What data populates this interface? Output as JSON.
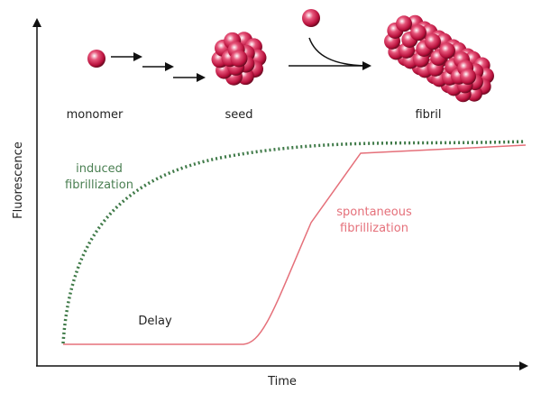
{
  "stages": {
    "monomer": "monomer",
    "seed": "seed",
    "fibril": "fibril"
  },
  "curves": {
    "induced": [
      "induced",
      "fibrillization"
    ],
    "spontaneous": [
      "spontaneous",
      "fibrillization"
    ],
    "delay": "Delay"
  },
  "axes": {
    "y_label": "Fluorescence",
    "x_label": "Time"
  }
}
